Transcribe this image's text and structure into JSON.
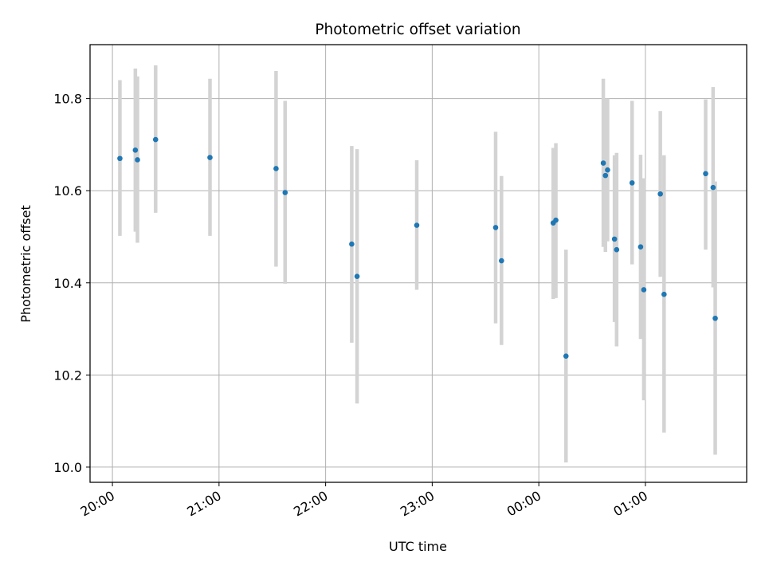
{
  "chart_data": {
    "type": "scatter",
    "title": "Photometric offset variation",
    "xlabel": "UTC time",
    "ylabel": "Photometric offset",
    "x_tick_labels": [
      "20:00",
      "21:00",
      "22:00",
      "23:00",
      "00:00",
      "01:00"
    ],
    "x_tick_hours": [
      20,
      21,
      22,
      23,
      24,
      25
    ],
    "xlim_hours": [
      19.79,
      25.95
    ],
    "y_ticks": [
      10.0,
      10.2,
      10.4,
      10.6,
      10.8
    ],
    "y_tick_labels": [
      "10.0",
      "10.2",
      "10.4",
      "10.6",
      "10.8"
    ],
    "ylim": [
      9.967,
      10.917
    ],
    "grid": true,
    "marker_color": "#1f77b4",
    "errorbar_color": "#d3d3d3",
    "points": [
      {
        "time": "20:04",
        "hours": 20.07,
        "value": 10.67,
        "err_low": 10.502,
        "err_high": 10.84
      },
      {
        "time": "20:13",
        "hours": 20.215,
        "value": 10.688,
        "err_low": 10.511,
        "err_high": 10.865
      },
      {
        "time": "20:14",
        "hours": 20.235,
        "value": 10.667,
        "err_low": 10.487,
        "err_high": 10.848
      },
      {
        "time": "20:24",
        "hours": 20.405,
        "value": 10.711,
        "err_low": 10.552,
        "err_high": 10.872
      },
      {
        "time": "20:55",
        "hours": 20.915,
        "value": 10.672,
        "err_low": 10.502,
        "err_high": 10.843
      },
      {
        "time": "21:32",
        "hours": 21.535,
        "value": 10.648,
        "err_low": 10.435,
        "err_high": 10.86
      },
      {
        "time": "21:37",
        "hours": 21.62,
        "value": 10.596,
        "err_low": 10.398,
        "err_high": 10.795
      },
      {
        "time": "22:14",
        "hours": 22.245,
        "value": 10.484,
        "err_low": 10.27,
        "err_high": 10.697
      },
      {
        "time": "22:17",
        "hours": 22.295,
        "value": 10.414,
        "err_low": 10.138,
        "err_high": 10.69
      },
      {
        "time": "22:51",
        "hours": 22.855,
        "value": 10.525,
        "err_low": 10.385,
        "err_high": 10.666
      },
      {
        "time": "23:35",
        "hours": 23.595,
        "value": 10.52,
        "err_low": 10.312,
        "err_high": 10.728
      },
      {
        "time": "23:39",
        "hours": 23.65,
        "value": 10.448,
        "err_low": 10.265,
        "err_high": 10.632
      },
      {
        "time": "00:08",
        "hours": 24.135,
        "value": 10.53,
        "err_low": 10.365,
        "err_high": 10.693
      },
      {
        "time": "00:10",
        "hours": 24.16,
        "value": 10.536,
        "err_low": 10.367,
        "err_high": 10.703
      },
      {
        "time": "00:15",
        "hours": 24.255,
        "value": 10.241,
        "err_low": 10.01,
        "err_high": 10.472
      },
      {
        "time": "00:36",
        "hours": 24.605,
        "value": 10.66,
        "err_low": 10.478,
        "err_high": 10.843
      },
      {
        "time": "00:37",
        "hours": 24.625,
        "value": 10.633,
        "err_low": 10.467,
        "err_high": 10.8
      },
      {
        "time": "00:38",
        "hours": 24.645,
        "value": 10.645,
        "err_low": 10.49,
        "err_high": 10.8
      },
      {
        "time": "00:42",
        "hours": 24.71,
        "value": 10.495,
        "err_low": 10.315,
        "err_high": 10.677
      },
      {
        "time": "00:43",
        "hours": 24.73,
        "value": 10.472,
        "err_low": 10.262,
        "err_high": 10.682
      },
      {
        "time": "00:52",
        "hours": 24.875,
        "value": 10.617,
        "err_low": 10.44,
        "err_high": 10.795
      },
      {
        "time": "00:57",
        "hours": 24.955,
        "value": 10.478,
        "err_low": 10.278,
        "err_high": 10.678
      },
      {
        "time": "00:59",
        "hours": 24.985,
        "value": 10.385,
        "err_low": 10.145,
        "err_high": 10.627
      },
      {
        "time": "01:08",
        "hours": 25.14,
        "value": 10.593,
        "err_low": 10.413,
        "err_high": 10.773
      },
      {
        "time": "01:10",
        "hours": 25.175,
        "value": 10.375,
        "err_low": 10.075,
        "err_high": 10.677
      },
      {
        "time": "01:34",
        "hours": 25.565,
        "value": 10.637,
        "err_low": 10.472,
        "err_high": 10.798
      },
      {
        "time": "01:38",
        "hours": 25.635,
        "value": 10.607,
        "err_low": 10.39,
        "err_high": 10.825
      },
      {
        "time": "01:39",
        "hours": 25.655,
        "value": 10.323,
        "err_low": 10.027,
        "err_high": 10.62
      }
    ]
  }
}
